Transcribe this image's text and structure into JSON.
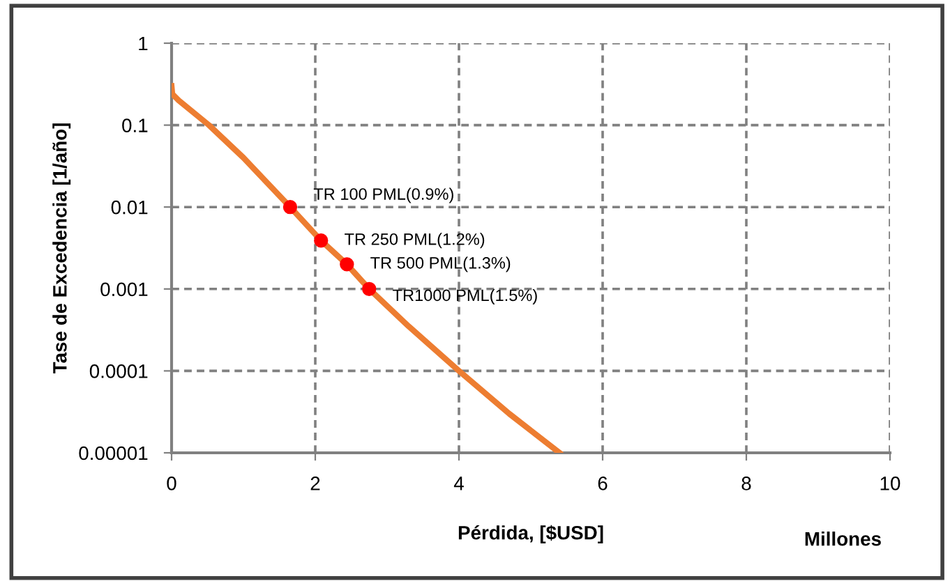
{
  "chart_data": {
    "type": "line",
    "xlabel": "Pérdida, [$USD]",
    "ylabel": "Tase de Excedencia [1/año]",
    "log": "y",
    "series": [
      {
        "color": "#ed7d31",
        "x": [
          0,
          0.01,
          0.1,
          0.52,
          1.0,
          1.65,
          2.08,
          2.44,
          2.75,
          3.3,
          4.0,
          4.7,
          5.4
        ],
        "values": [
          0.3,
          0.24,
          0.2,
          0.1,
          0.04,
          0.01,
          0.0039,
          0.002,
          0.001,
          0.00035,
          0.0001,
          3e-05,
          1e-05
        ]
      },
      {
        "type": "scatter",
        "color": "#ff0000",
        "x": [
          1.65,
          2.08,
          2.44,
          2.75
        ],
        "values": [
          0.01,
          0.0039,
          0.002,
          0.001
        ],
        "marker": "circle"
      }
    ],
    "annotations": [
      {
        "text": "TR 100 PML(0.9%)",
        "x": 1.65,
        "y": 0.01
      },
      {
        "text": "TR 250 PML(1.2%)",
        "x": 2.08,
        "y": 0.0039
      },
      {
        "text": "TR 500 PML(1.3%)",
        "x": 2.44,
        "y": 0.002
      },
      {
        "text": "TR1000 PML(1.5%)",
        "x": 2.75,
        "y": 0.001
      },
      "Millones"
    ],
    "xlim": [
      0,
      10
    ],
    "xticks": [
      0,
      2,
      4,
      6,
      8,
      10
    ],
    "ylim": [
      1e-05,
      1
    ],
    "yticks": [
      {
        "value": 1e-05,
        "label": "0.00001"
      },
      {
        "value": 0.0001,
        "label": "0.0001"
      },
      {
        "value": 0.001,
        "label": "0.001"
      },
      {
        "value": 0.01,
        "label": "0.01"
      },
      {
        "value": 0.1,
        "label": "0.1"
      },
      {
        "value": 1,
        "label": "1"
      }
    ],
    "grid": true,
    "line_style": "solid"
  }
}
